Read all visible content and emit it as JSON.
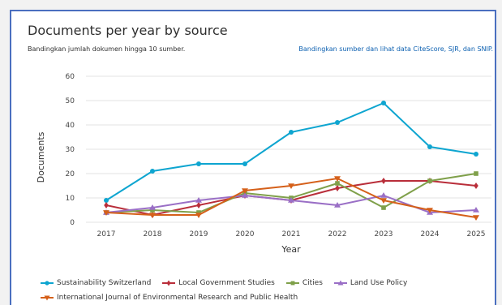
{
  "header": {
    "title": "Documents per year by source",
    "subtitle": "Bandingkan jumlah dokumen hingga 10 sumber.",
    "compare_link": "Bandingkan sumber dan lihat data CiteScore, SJR, dan SNIP."
  },
  "chart_data": {
    "type": "line",
    "title": "Documents per year by source",
    "xlabel": "Year",
    "ylabel": "Documents",
    "x": [
      2017,
      2018,
      2019,
      2020,
      2021,
      2022,
      2023,
      2024,
      2025
    ],
    "ylim": [
      0,
      60
    ],
    "yticks": [
      0,
      10,
      20,
      30,
      40,
      50,
      60
    ],
    "grid": true,
    "legend_position": "bottom",
    "series": [
      {
        "name": "Sustainability Switzerland",
        "color": "#0ea5d0",
        "marker": "circle",
        "values": [
          9,
          21,
          24,
          24,
          37,
          41,
          49,
          31,
          28
        ]
      },
      {
        "name": "Local Government Studies",
        "color": "#b92e3a",
        "marker": "diamond",
        "values": [
          7,
          3,
          7,
          11,
          9,
          14,
          17,
          17,
          15
        ]
      },
      {
        "name": "Cities",
        "color": "#7fa04a",
        "marker": "square",
        "values": [
          4,
          5,
          4,
          12,
          10,
          16,
          6,
          17,
          20
        ]
      },
      {
        "name": "Land Use Policy",
        "color": "#9a6fc6",
        "marker": "triangle-up",
        "values": [
          4,
          6,
          9,
          11,
          9,
          7,
          11,
          4,
          5
        ]
      },
      {
        "name": "International Journal of Environmental Research and Public Health",
        "color": "#d5601a",
        "marker": "triangle-down",
        "values": [
          4,
          3,
          3,
          13,
          15,
          18,
          9,
          5,
          2
        ]
      }
    ]
  }
}
